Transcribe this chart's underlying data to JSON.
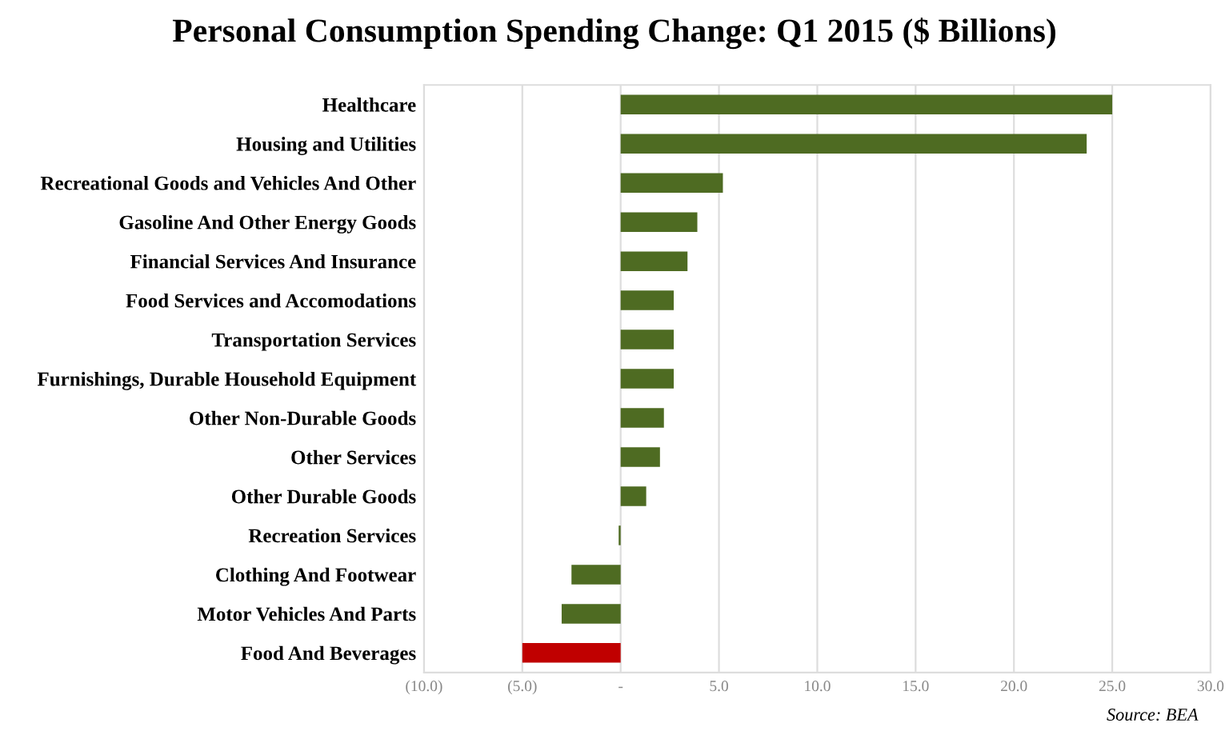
{
  "chart_data": {
    "type": "bar",
    "orientation": "horizontal",
    "title": "Personal Consumption Spending Change: Q1 2015 ($ Billions)",
    "categories": [
      "Healthcare",
      "Housing and Utilities",
      "Recreational Goods and Vehicles And Other",
      "Gasoline And Other Energy Goods",
      "Financial Services And Insurance",
      "Food Services and Accomodations",
      "Transportation Services",
      "Furnishings, Durable Household Equipment",
      "Other Non-Durable Goods",
      "Other Services",
      "Other Durable Goods",
      "Recreation Services",
      "Clothing And Footwear",
      "Motor Vehicles And Parts",
      "Food And Beverages"
    ],
    "values": [
      25.0,
      23.7,
      5.2,
      3.9,
      3.4,
      2.7,
      2.7,
      2.7,
      2.2,
      2.0,
      1.3,
      -0.1,
      -2.5,
      -3.0,
      -5.0
    ],
    "colors": [
      "#4e6b22",
      "#4e6b22",
      "#4e6b22",
      "#4e6b22",
      "#4e6b22",
      "#4e6b22",
      "#4e6b22",
      "#4e6b22",
      "#4e6b22",
      "#4e6b22",
      "#4e6b22",
      "#4e6b22",
      "#4e6b22",
      "#4e6b22",
      "#c00000"
    ],
    "xlim": [
      -10,
      30
    ],
    "xticks": [
      {
        "value": -10,
        "label": "(10.0)"
      },
      {
        "value": -5,
        "label": "(5.0)"
      },
      {
        "value": 0,
        "label": "-"
      },
      {
        "value": 5,
        "label": "5.0"
      },
      {
        "value": 10,
        "label": "10.0"
      },
      {
        "value": 15,
        "label": "15.0"
      },
      {
        "value": 20,
        "label": "20.0"
      },
      {
        "value": 25,
        "label": "25.0"
      },
      {
        "value": 30,
        "label": "30.0"
      }
    ],
    "grid": "x",
    "annotations": [
      "Source: BEA"
    ]
  }
}
